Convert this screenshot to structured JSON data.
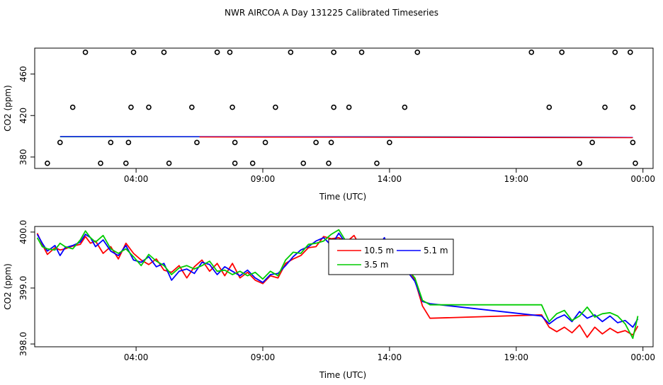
{
  "title": "NWR AIRCOA A  Day 131225  Calibrated Timeseries",
  "chart_data": [
    {
      "type": "scatter",
      "xlabel": "Time (UTC)",
      "ylabel": "CO2 (ppm)",
      "xlim": [
        0,
        24.4
      ],
      "ylim": [
        369,
        485
      ],
      "x_ticks": [
        4,
        9,
        14,
        19,
        24
      ],
      "x_tick_labels": [
        "04:00",
        "09:00",
        "14:00",
        "19:00",
        "00:00"
      ],
      "y_ticks": [
        380,
        420,
        460
      ],
      "y_tick_labels": [
        "380",
        "420",
        "460"
      ],
      "grid": false,
      "series": [
        {
          "marker": "open-circle",
          "color": "#000000",
          "points": [
            [
              0.5,
              374
            ],
            [
              1.0,
              394
            ],
            [
              1.5,
              428
            ],
            [
              2.0,
              481
            ],
            [
              2.6,
              374
            ],
            [
              3.0,
              394
            ],
            [
              3.6,
              374
            ],
            [
              3.7,
              394
            ],
            [
              3.8,
              428
            ],
            [
              3.9,
              481
            ],
            [
              4.5,
              428
            ],
            [
              5.1,
              481
            ],
            [
              5.3,
              374
            ],
            [
              6.2,
              428
            ],
            [
              6.4,
              394
            ],
            [
              7.2,
              481
            ],
            [
              7.7,
              481
            ],
            [
              7.8,
              428
            ],
            [
              7.9,
              374
            ],
            [
              7.9,
              394
            ],
            [
              8.6,
              374
            ],
            [
              9.1,
              394
            ],
            [
              9.5,
              428
            ],
            [
              10.1,
              481
            ],
            [
              10.6,
              374
            ],
            [
              11.1,
              394
            ],
            [
              11.6,
              374
            ],
            [
              11.7,
              394
            ],
            [
              11.8,
              428
            ],
            [
              11.8,
              481
            ],
            [
              12.4,
              428
            ],
            [
              12.9,
              481
            ],
            [
              13.5,
              374
            ],
            [
              14.0,
              394
            ],
            [
              14.6,
              428
            ],
            [
              15.1,
              481
            ],
            [
              19.6,
              481
            ],
            [
              20.3,
              428
            ],
            [
              20.8,
              481
            ],
            [
              21.5,
              374
            ],
            [
              22.0,
              394
            ],
            [
              22.5,
              428
            ],
            [
              22.9,
              481
            ],
            [
              23.5,
              481
            ],
            [
              23.6,
              428
            ],
            [
              23.6,
              394
            ],
            [
              23.7,
              374
            ]
          ]
        },
        {
          "name": "3.5 m",
          "marker": "line",
          "color": "#00cc00",
          "points": [
            [
              1,
              399.5
            ],
            [
              14.3,
              399.5
            ],
            [
              23.6,
              398.9
            ]
          ]
        },
        {
          "name": "5.1 m",
          "marker": "line",
          "color": "#0000ff",
          "points": [
            [
              1,
              399.8
            ],
            [
              14.3,
              399.4
            ],
            [
              23.6,
              398.9
            ]
          ]
        },
        {
          "name": "10.5 m",
          "marker": "line",
          "color": "#ff0000",
          "points": [
            [
              6.5,
              399.3
            ],
            [
              14.3,
              399.0
            ],
            [
              23.6,
              398.6
            ]
          ]
        }
      ]
    },
    {
      "type": "line",
      "xlabel": "Time (UTC)",
      "ylabel": "CO2 (ppm)",
      "xlim": [
        0,
        24.4
      ],
      "ylim": [
        397.95,
        400.1
      ],
      "x_ticks": [
        4,
        9,
        14,
        19,
        24
      ],
      "x_tick_labels": [
        "04:00",
        "09:00",
        "14:00",
        "19:00",
        "00:00"
      ],
      "y_ticks": [
        398.0,
        399.0,
        400.0
      ],
      "y_tick_labels": [
        "398.0",
        "399.0",
        "400.0"
      ],
      "grid": false,
      "legend": {
        "placement": "top-center",
        "entries": [
          {
            "label": "10.5 m",
            "color": "#ff0000"
          },
          {
            "label": "5.1 m",
            "color": "#0000ff"
          },
          {
            "label": "3.5 m",
            "color": "#00cc00"
          }
        ]
      },
      "series": [
        {
          "name": "10.5 m",
          "color": "#ff0000",
          "x": [
            0.1,
            0.3,
            0.5,
            0.8,
            1.0,
            1.2,
            1.5,
            1.8,
            2.0,
            2.2,
            2.4,
            2.7,
            3.0,
            3.3,
            3.6,
            3.9,
            4.2,
            4.5,
            4.8,
            5.1,
            5.4,
            5.7,
            6.0,
            6.3,
            6.6,
            6.9,
            7.2,
            7.5,
            7.8,
            8.1,
            8.4,
            8.7,
            9.0,
            9.3,
            9.6,
            9.9,
            10.2,
            10.5,
            10.8,
            11.1,
            11.4,
            11.7,
            12.0,
            12.3,
            12.6,
            12.9,
            13.2,
            13.5,
            13.8,
            14.1,
            14.4,
            14.7,
            15.0,
            15.3,
            15.6,
            20.0,
            20.3,
            20.6,
            20.9,
            21.2,
            21.5,
            21.8,
            22.1,
            22.4,
            22.7,
            23.0,
            23.3,
            23.6,
            23.8
          ],
          "y": [
            399.98,
            399.78,
            399.6,
            399.72,
            399.68,
            399.7,
            399.75,
            399.78,
            399.92,
            399.8,
            399.84,
            399.62,
            399.74,
            399.52,
            399.8,
            399.62,
            399.5,
            399.42,
            399.52,
            399.32,
            399.28,
            399.4,
            399.18,
            399.38,
            399.5,
            399.3,
            399.44,
            399.22,
            399.44,
            399.18,
            399.28,
            399.14,
            399.08,
            399.22,
            399.18,
            399.44,
            399.52,
            399.58,
            399.72,
            399.74,
            399.92,
            399.88,
            399.9,
            399.82,
            399.94,
            399.7,
            399.6,
            399.82,
            399.72,
            399.56,
            399.44,
            399.38,
            399.14,
            398.68,
            398.46,
            398.52,
            398.3,
            398.22,
            398.3,
            398.2,
            398.34,
            398.12,
            398.3,
            398.18,
            398.28,
            398.2,
            398.24,
            398.16,
            398.32
          ]
        },
        {
          "name": "5.1 m",
          "color": "#0000ff",
          "x": [
            0.1,
            0.3,
            0.5,
            0.8,
            1.0,
            1.2,
            1.5,
            1.8,
            2.0,
            2.2,
            2.4,
            2.7,
            3.0,
            3.3,
            3.6,
            3.9,
            4.2,
            4.5,
            4.8,
            5.1,
            5.4,
            5.7,
            6.0,
            6.3,
            6.6,
            6.9,
            7.2,
            7.5,
            7.8,
            8.1,
            8.4,
            8.7,
            9.0,
            9.3,
            9.6,
            9.9,
            10.2,
            10.5,
            10.8,
            11.1,
            11.4,
            11.7,
            12.0,
            12.3,
            12.6,
            12.9,
            13.2,
            13.5,
            13.8,
            14.1,
            14.4,
            14.7,
            15.0,
            15.3,
            15.6,
            20.0,
            20.3,
            20.6,
            20.9,
            21.2,
            21.5,
            21.8,
            22.1,
            22.4,
            22.7,
            23.0,
            23.3,
            23.6,
            23.8
          ],
          "y": [
            399.96,
            399.8,
            399.66,
            399.76,
            399.58,
            399.72,
            399.76,
            399.82,
            399.96,
            399.9,
            399.74,
            399.86,
            399.66,
            399.58,
            399.76,
            399.5,
            399.46,
            399.56,
            399.38,
            399.44,
            399.14,
            399.3,
            399.34,
            399.26,
            399.46,
            399.42,
            399.24,
            399.38,
            399.3,
            399.22,
            399.32,
            399.18,
            399.1,
            399.24,
            399.26,
            399.4,
            399.56,
            399.68,
            399.74,
            399.84,
            399.9,
            399.76,
            399.98,
            399.78,
            399.86,
            399.76,
            399.66,
            399.7,
            399.9,
            399.52,
            399.4,
            399.3,
            399.12,
            398.76,
            398.72,
            398.5,
            398.36,
            398.46,
            398.52,
            398.4,
            398.58,
            398.46,
            398.52,
            398.4,
            398.5,
            398.38,
            398.42,
            398.3,
            398.45
          ]
        },
        {
          "name": "3.5 m",
          "color": "#00cc00",
          "x": [
            0.1,
            0.3,
            0.5,
            0.8,
            1.0,
            1.2,
            1.5,
            1.8,
            2.0,
            2.2,
            2.4,
            2.7,
            3.0,
            3.3,
            3.6,
            3.9,
            4.2,
            4.5,
            4.8,
            5.1,
            5.4,
            5.7,
            6.0,
            6.3,
            6.6,
            6.9,
            7.2,
            7.5,
            7.8,
            8.1,
            8.4,
            8.7,
            9.0,
            9.3,
            9.6,
            9.9,
            10.2,
            10.5,
            10.8,
            11.1,
            11.4,
            11.7,
            12.0,
            12.3,
            12.6,
            12.9,
            13.2,
            13.5,
            13.8,
            14.1,
            14.4,
            14.7,
            15.0,
            15.3,
            15.6,
            20.0,
            20.3,
            20.6,
            20.9,
            21.2,
            21.5,
            21.8,
            22.1,
            22.4,
            22.7,
            23.0,
            23.3,
            23.6,
            23.8
          ],
          "y": [
            399.9,
            399.74,
            399.7,
            399.68,
            399.8,
            399.74,
            399.7,
            399.86,
            400.02,
            399.9,
            399.82,
            399.94,
            399.7,
            399.62,
            399.7,
            399.56,
            399.4,
            399.6,
            399.48,
            399.4,
            399.24,
            399.36,
            399.4,
            399.34,
            399.4,
            399.48,
            399.3,
            399.32,
            399.24,
            399.3,
            399.22,
            399.28,
            399.16,
            399.3,
            399.22,
            399.5,
            399.64,
            399.62,
            399.78,
            399.8,
            399.84,
            399.96,
            400.04,
            399.82,
            399.8,
            399.86,
            399.7,
            399.74,
            399.78,
            399.6,
            399.46,
            399.34,
            399.18,
            398.78,
            398.7,
            398.7,
            398.4,
            398.54,
            398.6,
            398.42,
            398.5,
            398.66,
            398.48,
            398.54,
            398.56,
            398.5,
            398.36,
            398.1,
            398.5
          ]
        }
      ]
    }
  ]
}
